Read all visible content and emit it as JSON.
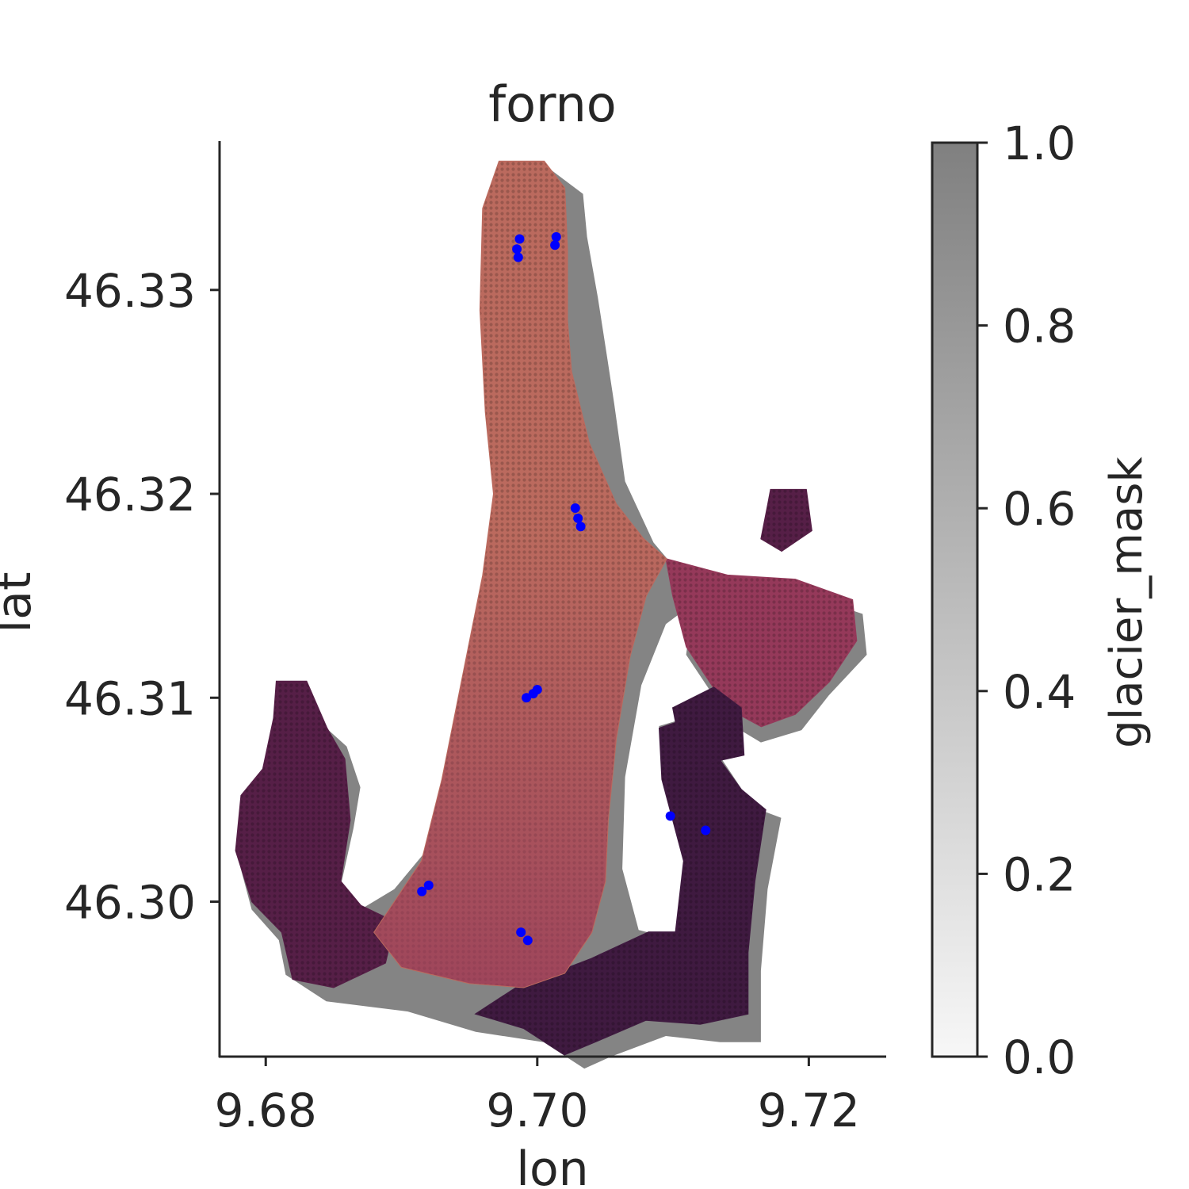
{
  "chart_data": {
    "type": "scatter",
    "title": "forno",
    "xlabel": "lon",
    "ylabel": "lat",
    "xlim": [
      9.6766,
      9.7257
    ],
    "ylim": [
      46.2924,
      46.3373
    ],
    "xticks": [
      9.68,
      9.7,
      9.72
    ],
    "xtick_labels": [
      "9.68",
      "9.70",
      "9.72"
    ],
    "yticks": [
      46.3,
      46.31,
      46.32,
      46.33
    ],
    "ytick_labels": [
      "46.30",
      "46.31",
      "46.32",
      "46.33"
    ],
    "grid": false,
    "glacier_outline": [
      [
        9.6972,
        46.3362
      ],
      [
        9.7005,
        46.3363
      ],
      [
        9.7029,
        46.3351
      ],
      [
        9.7032,
        46.333
      ],
      [
        9.704,
        46.33
      ],
      [
        9.7047,
        46.327
      ],
      [
        9.7052,
        46.3248
      ],
      [
        9.706,
        46.321
      ],
      [
        9.7081,
        46.318
      ],
      [
        9.71,
        46.3165
      ],
      [
        9.714,
        46.3158
      ],
      [
        9.719,
        46.3155
      ],
      [
        9.7235,
        46.3145
      ],
      [
        9.7238,
        46.3125
      ],
      [
        9.721,
        46.3105
      ],
      [
        9.719,
        46.3088
      ],
      [
        9.716,
        46.3082
      ],
      [
        9.714,
        46.309
      ],
      [
        9.7105,
        46.3125
      ],
      [
        9.711,
        46.315
      ],
      [
        9.709,
        46.314
      ],
      [
        9.7072,
        46.311
      ],
      [
        9.706,
        46.3065
      ],
      [
        9.7058,
        46.302
      ],
      [
        9.707,
        46.299
      ],
      [
        9.71,
        46.2985
      ],
      [
        9.7108,
        46.302
      ],
      [
        9.709,
        46.306
      ],
      [
        9.7085,
        46.309
      ],
      [
        9.711,
        46.3095
      ],
      [
        9.7155,
        46.305
      ],
      [
        9.7175,
        46.3045
      ],
      [
        9.7165,
        46.301
      ],
      [
        9.716,
        46.297
      ],
      [
        9.716,
        46.2935
      ],
      [
        9.713,
        46.2935
      ],
      [
        9.709,
        46.2938
      ],
      [
        9.705,
        46.2928
      ],
      [
        9.703,
        46.2922
      ],
      [
        9.7,
        46.2935
      ],
      [
        9.695,
        46.294
      ],
      [
        9.69,
        46.295
      ],
      [
        9.684,
        46.2955
      ],
      [
        9.681,
        46.2968
      ],
      [
        9.6805,
        46.2985
      ],
      [
        9.6785,
        46.3
      ],
      [
        9.6775,
        46.3025
      ],
      [
        9.678,
        46.305
      ],
      [
        9.6795,
        46.3065
      ],
      [
        9.6805,
        46.3095
      ],
      [
        9.6815,
        46.3112
      ],
      [
        9.683,
        46.3095
      ],
      [
        9.6855,
        46.308
      ],
      [
        9.6865,
        46.306
      ],
      [
        9.686,
        46.304
      ],
      [
        9.685,
        46.301
      ],
      [
        9.6865,
        46.3
      ],
      [
        9.689,
        46.301
      ],
      [
        9.6915,
        46.303
      ],
      [
        9.693,
        46.307
      ],
      [
        9.6945,
        46.312
      ],
      [
        9.6958,
        46.316
      ],
      [
        9.6965,
        46.32
      ],
      [
        9.6958,
        46.325
      ],
      [
        9.6955,
        46.33
      ],
      [
        9.696,
        46.334
      ]
    ],
    "region_main_tongue": [
      [
        9.6972,
        46.3363
      ],
      [
        9.7005,
        46.3363
      ],
      [
        9.702,
        46.335
      ],
      [
        9.7022,
        46.332
      ],
      [
        9.7022,
        46.3285
      ],
      [
        9.7025,
        46.326
      ],
      [
        9.7038,
        46.3225
      ],
      [
        9.7058,
        46.3195
      ],
      [
        9.7078,
        46.3178
      ],
      [
        9.7095,
        46.3168
      ],
      [
        9.708,
        46.315
      ],
      [
        9.7068,
        46.312
      ],
      [
        9.7058,
        46.308
      ],
      [
        9.7052,
        46.304
      ],
      [
        9.705,
        46.301
      ],
      [
        9.704,
        46.2985
      ],
      [
        9.702,
        46.2965
      ],
      [
        9.699,
        46.2958
      ],
      [
        9.695,
        46.296
      ],
      [
        9.69,
        46.2968
      ],
      [
        9.688,
        46.2985
      ],
      [
        9.6895,
        46.3
      ],
      [
        9.6915,
        46.302
      ],
      [
        9.693,
        46.306
      ],
      [
        9.6945,
        46.311
      ],
      [
        9.696,
        46.316
      ],
      [
        9.6968,
        46.32
      ],
      [
        9.6962,
        46.324
      ],
      [
        9.6958,
        46.329
      ],
      [
        9.696,
        46.334
      ]
    ],
    "region_east_lobe": [
      [
        9.7095,
        46.3168
      ],
      [
        9.714,
        46.316
      ],
      [
        9.719,
        46.3158
      ],
      [
        9.7232,
        46.3148
      ],
      [
        9.7235,
        46.3128
      ],
      [
        9.7215,
        46.3108
      ],
      [
        9.719,
        46.3092
      ],
      [
        9.7165,
        46.3086
      ],
      [
        9.714,
        46.3095
      ],
      [
        9.711,
        46.3125
      ],
      [
        9.71,
        46.315
      ]
    ],
    "region_east_islet": [
      [
        9.7172,
        46.3202
      ],
      [
        9.7198,
        46.3202
      ],
      [
        9.7202,
        46.3182
      ],
      [
        9.718,
        46.3172
      ],
      [
        9.7165,
        46.3178
      ],
      [
        9.717,
        46.3195
      ]
    ],
    "region_west_lobe": [
      [
        9.6808,
        46.3108
      ],
      [
        9.683,
        46.3108
      ],
      [
        9.6845,
        46.3085
      ],
      [
        9.6858,
        46.307
      ],
      [
        9.6862,
        46.304
      ],
      [
        9.6855,
        46.301
      ],
      [
        9.687,
        46.2998
      ],
      [
        9.6895,
        46.299
      ],
      [
        9.6888,
        46.297
      ],
      [
        9.685,
        46.2958
      ],
      [
        9.682,
        46.2962
      ],
      [
        9.6812,
        46.2985
      ],
      [
        9.679,
        46.3
      ],
      [
        9.6778,
        46.3025
      ],
      [
        9.6782,
        46.3052
      ],
      [
        9.6798,
        46.3065
      ],
      [
        9.6806,
        46.309
      ]
    ],
    "region_south_lobe": [
      [
        9.6985,
        46.2958
      ],
      [
        9.704,
        46.2972
      ],
      [
        9.7082,
        46.2985
      ],
      [
        9.7102,
        46.2985
      ],
      [
        9.7108,
        46.302
      ],
      [
        9.7092,
        46.306
      ],
      [
        9.709,
        46.3085
      ],
      [
        9.7112,
        46.309
      ],
      [
        9.715,
        46.3055
      ],
      [
        9.7168,
        46.3045
      ],
      [
        9.716,
        46.301
      ],
      [
        9.7155,
        46.2975
      ],
      [
        9.7155,
        46.2945
      ],
      [
        9.712,
        46.294
      ],
      [
        9.708,
        46.2942
      ],
      [
        9.7045,
        46.2932
      ],
      [
        9.702,
        46.2925
      ],
      [
        9.699,
        46.2938
      ],
      [
        9.6955,
        46.2945
      ]
    ],
    "region_inner_islet": [
      [
        9.71,
        46.3095
      ],
      [
        9.713,
        46.3105
      ],
      [
        9.715,
        46.3095
      ],
      [
        9.7152,
        46.3072
      ],
      [
        9.7125,
        46.3068
      ],
      [
        9.7105,
        46.3078
      ]
    ],
    "stakes": [
      [
        9.6985,
        46.332
      ],
      [
        9.6986,
        46.3316
      ],
      [
        9.6987,
        46.3325
      ],
      [
        9.7013,
        46.3322
      ],
      [
        9.7014,
        46.3326
      ],
      [
        9.7028,
        46.3193
      ],
      [
        9.703,
        46.3188
      ],
      [
        9.7032,
        46.3184
      ],
      [
        9.6992,
        46.31
      ],
      [
        9.6997,
        46.3102
      ],
      [
        9.7,
        46.3104
      ],
      [
        9.7098,
        46.3042
      ],
      [
        9.7124,
        46.3035
      ],
      [
        9.6915,
        46.3005
      ],
      [
        9.692,
        46.3008
      ],
      [
        9.6988,
        46.2985
      ],
      [
        9.6993,
        46.2981
      ]
    ],
    "colorbar": {
      "label": "glacier_mask",
      "range": [
        0.0,
        1.0
      ],
      "ticks": [
        0.0,
        0.2,
        0.4,
        0.6,
        0.8,
        1.0
      ],
      "tick_labels": [
        "0.0",
        "0.2",
        "0.4",
        "0.6",
        "0.8",
        "1.0"
      ],
      "color_low": "#f7f7f7",
      "color_high": "#808080"
    }
  },
  "colors": {
    "mask": "#848484",
    "tongue": "#bb6a5e",
    "mid": "#95395a",
    "dark": "#561f47",
    "darker": "#3f1a40",
    "stake": "#0000ff"
  }
}
